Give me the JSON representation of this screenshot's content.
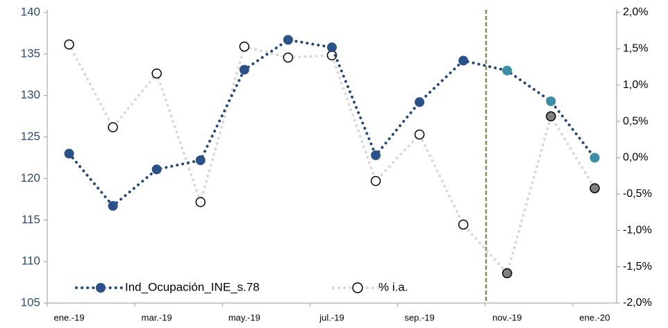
{
  "chart_data": {
    "type": "line",
    "categories": [
      "ene.-19",
      null,
      "mar.-19",
      null,
      "may.-19",
      null,
      "jul.-19",
      null,
      "sep.-19",
      null,
      "nov.-19",
      null,
      "ene.-20"
    ],
    "series": [
      {
        "name": "Ind_Ocupación_INE_s.78",
        "color": "#1f497d",
        "marker_colors": [
          "#2a5189",
          "#2a5189",
          "#2a5189",
          "#2a5189",
          "#2a5189",
          "#2a5189",
          "#2a5189",
          "#2a5189",
          "#2a5189",
          "#2a5189",
          "#3a8ea5",
          "#3a8ea5",
          "#3a8ea5"
        ],
        "values": [
          123.0,
          116.7,
          121.1,
          122.2,
          133.1,
          136.7,
          135.8,
          122.8,
          129.2,
          134.2,
          133.0,
          129.3,
          122.5
        ]
      },
      {
        "name": "% i.a.",
        "color": "#d9d9d9",
        "axis": "y2",
        "marker_colors": [
          "#ffffff",
          "#ffffff",
          "#ffffff",
          "#ffffff",
          "#ffffff",
          "#ffffff",
          "#ffffff",
          "#ffffff",
          "#ffffff",
          "#ffffff",
          "#808080",
          "#808080",
          "#808080"
        ],
        "values": [
          1.56,
          0.42,
          1.16,
          -0.61,
          1.53,
          1.38,
          1.41,
          -0.32,
          0.32,
          -0.92,
          -1.59,
          0.57,
          -0.42
        ]
      }
    ],
    "ylim": [
      105,
      140
    ],
    "yticks": [
      105,
      110,
      115,
      120,
      125,
      130,
      135,
      140
    ],
    "y2lim": [
      -2.0,
      2.0
    ],
    "y2ticks": [
      {
        "value": -2.0,
        "label": "-2,0%"
      },
      {
        "value": -1.5,
        "label": "-1,5%"
      },
      {
        "value": -1.0,
        "label": "-1,0%"
      },
      {
        "value": -0.5,
        "label": "-0,5%"
      },
      {
        "value": 0.0,
        "label": "0,0%"
      },
      {
        "value": 0.5,
        "label": "0,5%"
      },
      {
        "value": 1.0,
        "label": "1,0%"
      },
      {
        "value": 1.5,
        "label": "1,5%"
      },
      {
        "value": 2.0,
        "label": "2,0%"
      }
    ]
  }
}
